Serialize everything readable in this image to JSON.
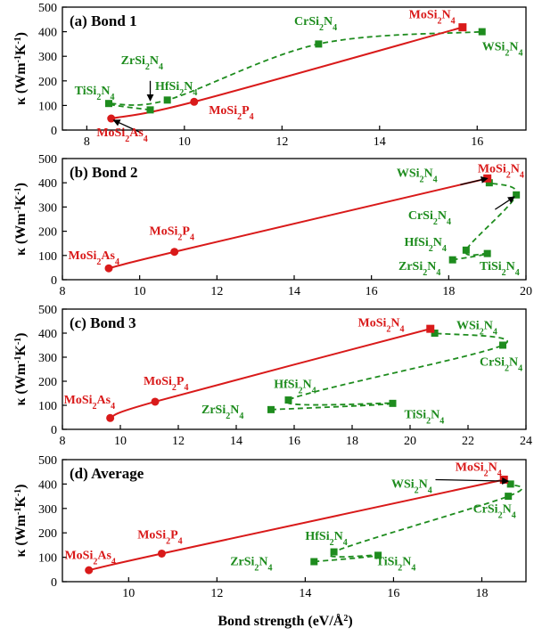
{
  "chart_data": [
    {
      "type": "line",
      "title": "(a) Bond 1",
      "xlabel": "",
      "ylabel": "κ (Wm-1K-1)",
      "xlim": [
        7.5,
        17
      ],
      "ylim": [
        0,
        500
      ],
      "xticks": [
        8,
        10,
        12,
        14,
        16
      ],
      "yticks": [
        0,
        100,
        200,
        300,
        400,
        500
      ],
      "colors": {
        "mosi": "#d91a1a",
        "other": "#1e8c1e"
      },
      "mosi_series": {
        "points": [
          {
            "label": "MoSi2As4",
            "x": 8.5,
            "y": 47
          },
          {
            "label": "MoSi2P4",
            "x": 10.2,
            "y": 115
          },
          {
            "label": "MoSi2N4",
            "x": 15.7,
            "y": 418
          }
        ]
      },
      "other_series": {
        "points": [
          {
            "label": "TiSi2N4",
            "x": 8.45,
            "y": 108
          },
          {
            "label": "ZrSi2N4",
            "x": 9.3,
            "y": 82
          },
          {
            "label": "HfSi2N4",
            "x": 9.65,
            "y": 122
          },
          {
            "label": "CrSi2N4",
            "x": 12.75,
            "y": 350
          },
          {
            "label": "WSi2N4",
            "x": 16.1,
            "y": 400
          }
        ]
      },
      "labels": [
        {
          "parts": [
            [
              "MoSi",
              ""
            ],
            [
              "2",
              "sub"
            ],
            [
              "As",
              ""
            ],
            [
              "4",
              "sub"
            ]
          ],
          "color": "red",
          "x": 8.2,
          "y": -25
        },
        {
          "parts": [
            [
              "MoSi",
              ""
            ],
            [
              "2",
              "sub"
            ],
            [
              "P",
              ""
            ],
            [
              "4",
              "sub"
            ]
          ],
          "color": "red",
          "x": 10.5,
          "y": 65
        },
        {
          "parts": [
            [
              "MoSi",
              ""
            ],
            [
              "2",
              "sub"
            ],
            [
              "N",
              ""
            ],
            [
              "4",
              "sub"
            ]
          ],
          "color": "red",
          "x": 14.6,
          "y": 455
        },
        {
          "parts": [
            [
              "TiSi",
              ""
            ],
            [
              "2",
              "sub"
            ],
            [
              "N",
              ""
            ],
            [
              "4",
              "sub"
            ]
          ],
          "color": "green",
          "x": 7.75,
          "y": 145
        },
        {
          "parts": [
            [
              "ZrSi",
              ""
            ],
            [
              "2",
              "sub"
            ],
            [
              "N",
              ""
            ],
            [
              "4",
              "sub"
            ]
          ],
          "color": "green",
          "x": 8.7,
          "y": 268
        },
        {
          "parts": [
            [
              "HfSi",
              ""
            ],
            [
              "2",
              "sub"
            ],
            [
              "N",
              ""
            ],
            [
              "4",
              "sub"
            ]
          ],
          "color": "green",
          "x": 9.4,
          "y": 163
        },
        {
          "parts": [
            [
              "CrSi",
              ""
            ],
            [
              "2",
              "sub"
            ],
            [
              "N",
              ""
            ],
            [
              "4",
              "sub"
            ]
          ],
          "color": "green",
          "x": 12.25,
          "y": 428
        },
        {
          "parts": [
            [
              "WSi",
              ""
            ],
            [
              "2",
              "sub"
            ],
            [
              "N",
              ""
            ],
            [
              "4",
              "sub"
            ]
          ],
          "color": "green",
          "x": 16.1,
          "y": 325
        }
      ],
      "arrows": [
        {
          "from": [
            9.3,
            200
          ],
          "to": [
            9.3,
            120
          ]
        },
        {
          "from": [
            9.1,
            -10
          ],
          "to": [
            8.55,
            40
          ]
        }
      ]
    },
    {
      "type": "line",
      "title": "(b) Bond 2",
      "xlabel": "",
      "ylabel": "κ (Wm-1K-1)",
      "xlim": [
        8,
        20
      ],
      "ylim": [
        0,
        500
      ],
      "xticks": [
        8,
        10,
        12,
        14,
        16,
        18,
        20
      ],
      "yticks": [
        0,
        100,
        200,
        300,
        400,
        500
      ],
      "colors": {
        "mosi": "#d91a1a",
        "other": "#1e8c1e"
      },
      "mosi_series": {
        "points": [
          {
            "label": "MoSi2As4",
            "x": 9.2,
            "y": 47
          },
          {
            "label": "MoSi2P4",
            "x": 10.9,
            "y": 115
          },
          {
            "label": "MoSi2N4",
            "x": 19.0,
            "y": 418
          }
        ]
      },
      "other_series": {
        "points": [
          {
            "label": "ZrSi2N4",
            "x": 18.1,
            "y": 82
          },
          {
            "label": "HfSi2N4",
            "x": 18.45,
            "y": 122
          },
          {
            "label": "TiSi2N4",
            "x": 19.0,
            "y": 108
          },
          {
            "label": "WSi2N4",
            "x": 19.05,
            "y": 400
          },
          {
            "label": "CrSi2N4",
            "x": 19.75,
            "y": 350
          }
        ]
      },
      "labels": [
        {
          "parts": [
            [
              "MoSi",
              ""
            ],
            [
              "2",
              "sub"
            ],
            [
              "As",
              ""
            ],
            [
              "4",
              "sub"
            ]
          ],
          "color": "red",
          "x": 8.15,
          "y": 85
        },
        {
          "parts": [
            [
              "MoSi",
              ""
            ],
            [
              "2",
              "sub"
            ],
            [
              "P",
              ""
            ],
            [
              "4",
              "sub"
            ]
          ],
          "color": "red",
          "x": 10.25,
          "y": 185
        },
        {
          "parts": [
            [
              "MoSi",
              ""
            ],
            [
              "2",
              "sub"
            ],
            [
              "N",
              ""
            ],
            [
              "4",
              "sub"
            ]
          ],
          "color": "red",
          "x": 18.75,
          "y": 443
        },
        {
          "parts": [
            [
              "WSi",
              ""
            ],
            [
              "2",
              "sub"
            ],
            [
              "N",
              ""
            ],
            [
              "4",
              "sub"
            ]
          ],
          "color": "green",
          "x": 16.65,
          "y": 425
        },
        {
          "parts": [
            [
              "CrSi",
              ""
            ],
            [
              "2",
              "sub"
            ],
            [
              "N",
              ""
            ],
            [
              "4",
              "sub"
            ]
          ],
          "color": "green",
          "x": 16.95,
          "y": 250
        },
        {
          "parts": [
            [
              "HfSi",
              ""
            ],
            [
              "2",
              "sub"
            ],
            [
              "N",
              ""
            ],
            [
              "4",
              "sub"
            ]
          ],
          "color": "green",
          "x": 16.85,
          "y": 140
        },
        {
          "parts": [
            [
              "ZrSi",
              ""
            ],
            [
              "2",
              "sub"
            ],
            [
              "N",
              ""
            ],
            [
              "4",
              "sub"
            ]
          ],
          "color": "green",
          "x": 16.7,
          "y": 40
        },
        {
          "parts": [
            [
              "TiSi",
              ""
            ],
            [
              "2",
              "sub"
            ],
            [
              "N",
              ""
            ],
            [
              "4",
              "sub"
            ]
          ],
          "color": "green",
          "x": 18.8,
          "y": 40
        }
      ],
      "arrows": [
        {
          "from": [
            18.3,
            392
          ],
          "to": [
            19.0,
            418
          ]
        },
        {
          "from": [
            19.2,
            290
          ],
          "to": [
            19.7,
            342
          ]
        }
      ]
    },
    {
      "type": "line",
      "title": "(c) Bond 3",
      "xlabel": "",
      "ylabel": "κ (Wm-1K-1)",
      "xlim": [
        8,
        24
      ],
      "ylim": [
        0,
        500
      ],
      "xticks": [
        8,
        10,
        12,
        14,
        16,
        18,
        20,
        22,
        24
      ],
      "yticks": [
        0,
        100,
        200,
        300,
        400,
        500
      ],
      "colors": {
        "mosi": "#d91a1a",
        "other": "#1e8c1e"
      },
      "mosi_series": {
        "points": [
          {
            "label": "MoSi2As4",
            "x": 9.65,
            "y": 47
          },
          {
            "label": "MoSi2P4",
            "x": 11.2,
            "y": 115
          },
          {
            "label": "MoSi2N4",
            "x": 20.7,
            "y": 418
          }
        ]
      },
      "other_series": {
        "points": [
          {
            "label": "ZrSi2N4",
            "x": 15.2,
            "y": 82
          },
          {
            "label": "HfSi2N4",
            "x": 15.8,
            "y": 122
          },
          {
            "label": "TiSi2N4",
            "x": 19.4,
            "y": 108
          },
          {
            "label": "WSi2N4",
            "x": 20.85,
            "y": 400
          },
          {
            "label": "CrSi2N4",
            "x": 23.2,
            "y": 350
          }
        ]
      },
      "labels": [
        {
          "parts": [
            [
              "MoSi",
              ""
            ],
            [
              "2",
              "sub"
            ],
            [
              "As",
              ""
            ],
            [
              "4",
              "sub"
            ]
          ],
          "color": "red",
          "x": 8.05,
          "y": 108
        },
        {
          "parts": [
            [
              "MoSi",
              ""
            ],
            [
              "2",
              "sub"
            ],
            [
              "P",
              ""
            ],
            [
              "4",
              "sub"
            ]
          ],
          "color": "red",
          "x": 10.8,
          "y": 185
        },
        {
          "parts": [
            [
              "MoSi",
              ""
            ],
            [
              "2",
              "sub"
            ],
            [
              "N",
              ""
            ],
            [
              "4",
              "sub"
            ]
          ],
          "color": "red",
          "x": 18.2,
          "y": 428
        },
        {
          "parts": [
            [
              "WSi",
              ""
            ],
            [
              "2",
              "sub"
            ],
            [
              "N",
              ""
            ],
            [
              "4",
              "sub"
            ]
          ],
          "color": "green",
          "x": 21.6,
          "y": 417
        },
        {
          "parts": [
            [
              "CrSi",
              ""
            ],
            [
              "2",
              "sub"
            ],
            [
              "N",
              ""
            ],
            [
              "4",
              "sub"
            ]
          ],
          "color": "green",
          "x": 22.4,
          "y": 265
        },
        {
          "parts": [
            [
              "HfSi",
              ""
            ],
            [
              "2",
              "sub"
            ],
            [
              "N",
              ""
            ],
            [
              "4",
              "sub"
            ]
          ],
          "color": "green",
          "x": 15.3,
          "y": 172
        },
        {
          "parts": [
            [
              "ZrSi",
              ""
            ],
            [
              "2",
              "sub"
            ],
            [
              "N",
              ""
            ],
            [
              "4",
              "sub"
            ]
          ],
          "color": "green",
          "x": 12.8,
          "y": 67
        },
        {
          "parts": [
            [
              "TiSi",
              ""
            ],
            [
              "2",
              "sub"
            ],
            [
              "N",
              ""
            ],
            [
              "4",
              "sub"
            ]
          ],
          "color": "green",
          "x": 19.8,
          "y": 47
        }
      ],
      "arrows": []
    },
    {
      "type": "line",
      "title": "(d) Average",
      "xlabel": "Bond strength (eV/Å2)",
      "ylabel": "κ (Wm-1K-1)",
      "xlim": [
        8.5,
        19
      ],
      "ylim": [
        0,
        500
      ],
      "xticks": [
        10,
        12,
        14,
        16,
        18
      ],
      "yticks": [
        0,
        100,
        200,
        300,
        400,
        500
      ],
      "colors": {
        "mosi": "#d91a1a",
        "other": "#1e8c1e"
      },
      "mosi_series": {
        "points": [
          {
            "label": "MoSi2As4",
            "x": 9.1,
            "y": 47
          },
          {
            "label": "MoSi2P4",
            "x": 10.75,
            "y": 115
          },
          {
            "label": "MoSi2N4",
            "x": 18.5,
            "y": 418
          }
        ]
      },
      "other_series": {
        "points": [
          {
            "label": "ZrSi2N4",
            "x": 14.2,
            "y": 82
          },
          {
            "label": "HfSi2N4",
            "x": 14.65,
            "y": 122
          },
          {
            "label": "TiSi2N4",
            "x": 15.65,
            "y": 108
          },
          {
            "label": "CrSi2N4",
            "x": 18.6,
            "y": 350
          },
          {
            "label": "WSi2N4",
            "x": 18.65,
            "y": 400
          }
        ]
      },
      "labels": [
        {
          "parts": [
            [
              "MoSi",
              ""
            ],
            [
              "2",
              "sub"
            ],
            [
              "As",
              ""
            ],
            [
              "4",
              "sub"
            ]
          ],
          "color": "red",
          "x": 8.55,
          "y": 93
        },
        {
          "parts": [
            [
              "MoSi",
              ""
            ],
            [
              "2",
              "sub"
            ],
            [
              "P",
              ""
            ],
            [
              "4",
              "sub"
            ]
          ],
          "color": "red",
          "x": 10.2,
          "y": 177
        },
        {
          "parts": [
            [
              "MoSi",
              ""
            ],
            [
              "2",
              "sub"
            ],
            [
              "N",
              ""
            ],
            [
              "4",
              "sub"
            ]
          ],
          "color": "red",
          "x": 17.4,
          "y": 455
        },
        {
          "parts": [
            [
              "WSi",
              ""
            ],
            [
              "2",
              "sub"
            ],
            [
              "N",
              ""
            ],
            [
              "4",
              "sub"
            ]
          ],
          "color": "green",
          "x": 15.95,
          "y": 385
        },
        {
          "parts": [
            [
              "CrSi",
              ""
            ],
            [
              "2",
              "sub"
            ],
            [
              "N",
              ""
            ],
            [
              "4",
              "sub"
            ]
          ],
          "color": "green",
          "x": 17.8,
          "y": 282
        },
        {
          "parts": [
            [
              "HfSi",
              ""
            ],
            [
              "2",
              "sub"
            ],
            [
              "N",
              ""
            ],
            [
              "4",
              "sub"
            ]
          ],
          "color": "green",
          "x": 14.0,
          "y": 172
        },
        {
          "parts": [
            [
              "ZrSi",
              ""
            ],
            [
              "2",
              "sub"
            ],
            [
              "N",
              ""
            ],
            [
              "4",
              "sub"
            ]
          ],
          "color": "green",
          "x": 12.3,
          "y": 67
        },
        {
          "parts": [
            [
              "TiSi",
              ""
            ],
            [
              "2",
              "sub"
            ],
            [
              "N",
              ""
            ],
            [
              "4",
              "sub"
            ]
          ],
          "color": "green",
          "x": 15.6,
          "y": 67
        }
      ],
      "arrows": [
        {
          "from": [
            16.95,
            418
          ],
          "to": [
            18.6,
            412
          ]
        }
      ]
    }
  ]
}
